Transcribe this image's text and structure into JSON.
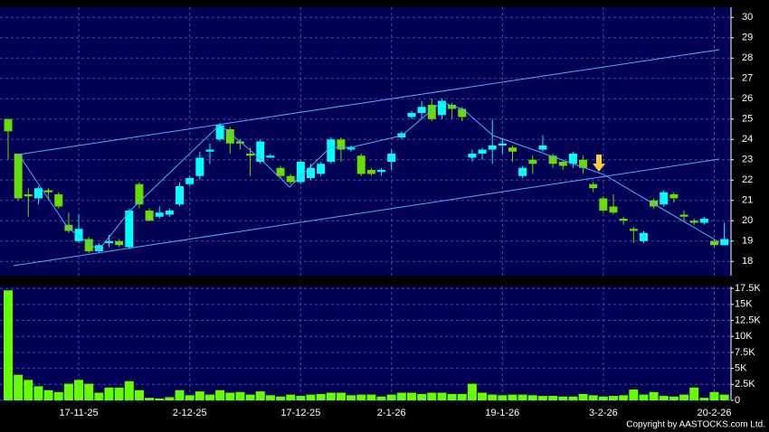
{
  "chart_data": [
    {
      "type": "candlestick",
      "open": [
        25,
        23.3,
        21.3,
        21.1,
        21.5,
        21.3,
        19.8,
        19.0,
        19.1,
        18.5,
        18.9,
        19.0,
        18.7,
        21.8,
        20.5,
        20.2,
        20.3,
        20.8,
        21.8,
        22.2,
        23.4,
        24.0,
        24.5,
        23.9,
        23.3,
        22.9,
        23.1,
        22.6,
        22.2,
        21.9,
        22.1,
        22.3,
        22.9,
        24.0,
        23.5,
        23.2,
        22.5,
        22.4,
        22.9,
        24.1,
        25.1,
        25.3,
        25.7,
        25.2,
        25.7,
        25.5,
        23.1,
        23.3,
        23.5,
        23.7,
        23.6,
        22.2,
        23.0,
        23.5,
        23.2,
        22.9,
        22.8,
        23.0,
        21.8,
        21.1,
        20.7,
        20.1,
        19.6,
        19.0,
        21.0,
        20.8,
        21.3,
        20.3,
        20.0,
        19.9,
        19.0,
        18.8
      ],
      "high": [
        25,
        23.3,
        21.6,
        21.7,
        21.6,
        21.4,
        20.4,
        20.3,
        19.2,
        18.9,
        19.3,
        19.1,
        20.6,
        21.9,
        20.6,
        20.7,
        20.6,
        21.9,
        22.2,
        23.4,
        23.8,
        24.8,
        24.6,
        24.0,
        23.6,
        24.0,
        23.3,
        22.7,
        22.3,
        23.0,
        22.8,
        22.9,
        24.1,
        24.1,
        23.7,
        23.3,
        22.6,
        22.6,
        23.5,
        24.4,
        25.4,
        25.9,
        26.0,
        26.0,
        25.8,
        25.6,
        23.5,
        23.6,
        25.0,
        24.0,
        23.7,
        22.7,
        23.2,
        24.2,
        23.3,
        23.0,
        23.4,
        23.2,
        21.9,
        21.2,
        21.3,
        20.2,
        19.7,
        19.5,
        21.1,
        21.5,
        21.4,
        20.5,
        20.1,
        20.2,
        19.1,
        19.9
      ],
      "low": [
        23,
        21.0,
        20.2,
        20.8,
        21.0,
        20.6,
        19.4,
        18.9,
        18.4,
        18.4,
        18.7,
        18.7,
        18.6,
        20.6,
        20.0,
        20.1,
        20.2,
        20.7,
        21.7,
        22.0,
        22.8,
        23.9,
        23.3,
        23.5,
        22.2,
        22.8,
        23.1,
        22.1,
        21.8,
        21.8,
        22.0,
        22.2,
        22.8,
        22.9,
        23.4,
        22.2,
        22.2,
        22.2,
        22.5,
        24.0,
        25.0,
        25.0,
        24.9,
        25.0,
        25.0,
        24.9,
        22.9,
        23.0,
        22.8,
        23.3,
        22.9,
        22.1,
        22.3,
        23.4,
        22.6,
        22.5,
        22.6,
        22.3,
        21.4,
        20.4,
        20.3,
        19.8,
        18.9,
        18.9,
        20.6,
        20.7,
        20.9,
        20.0,
        19.8,
        19.8,
        18.7,
        18.8
      ],
      "close": [
        24.4,
        21.1,
        21.2,
        21.6,
        21.4,
        20.7,
        19.5,
        19.6,
        18.5,
        18.8,
        19.0,
        18.8,
        20.5,
        20.8,
        20.0,
        20.4,
        20.5,
        21.7,
        22.1,
        23.1,
        23.5,
        24.7,
        23.8,
        23.8,
        23.2,
        23.9,
        23.2,
        22.2,
        21.9,
        22.9,
        22.6,
        22.8,
        24.0,
        23.5,
        23.6,
        22.3,
        22.3,
        22.5,
        23.3,
        24.3,
        25.3,
        25.6,
        25.0,
        25.9,
        25.5,
        25.1,
        23.3,
        23.5,
        23.7,
        23.8,
        23.4,
        22.6,
        22.8,
        23.7,
        22.8,
        22.7,
        23.3,
        22.6,
        21.6,
        20.5,
        20.4,
        20.0,
        19.5,
        19.4,
        20.7,
        21.4,
        21.1,
        20.2,
        19.9,
        20.1,
        18.8,
        19.1
      ],
      "up_color": "#00ffff",
      "down_color": "#66dd00",
      "ylim": [
        17.3,
        30.5
      ],
      "yticks": [
        18,
        19,
        20,
        21,
        22,
        23,
        24,
        25,
        26,
        27,
        28,
        29,
        30
      ],
      "grid": true
    },
    {
      "type": "bar",
      "categories": [
        null,
        null,
        null,
        null,
        null,
        null,
        null,
        "17-11-25",
        null,
        null,
        null,
        null,
        null,
        null,
        null,
        null,
        null,
        null,
        "2-12-25",
        null,
        null,
        null,
        null,
        null,
        null,
        null,
        null,
        null,
        null,
        "17-12-25",
        null,
        null,
        null,
        null,
        null,
        null,
        null,
        null,
        "2-1-26",
        null,
        null,
        null,
        null,
        null,
        null,
        null,
        null,
        null,
        null,
        "19-1-26",
        null,
        null,
        null,
        null,
        null,
        null,
        null,
        null,
        null,
        "3-2-26",
        null,
        null,
        null,
        null,
        null,
        null,
        null,
        null,
        null,
        null,
        "20-2-26",
        null
      ],
      "values": [
        17200,
        4000,
        3200,
        2200,
        1600,
        1300,
        2600,
        3200,
        2600,
        1200,
        2000,
        2000,
        3000,
        1600,
        400,
        300,
        500,
        1600,
        800,
        1400,
        900,
        1600,
        1200,
        1300,
        900,
        1400,
        800,
        600,
        900,
        700,
        900,
        1000,
        1200,
        1200,
        800,
        900,
        900,
        600,
        900,
        1200,
        1200,
        1000,
        1200,
        1200,
        1000,
        1000,
        2600,
        1200,
        900,
        800,
        900,
        900,
        800,
        700,
        700,
        600,
        600,
        1000,
        800,
        600,
        700,
        800,
        1700,
        900,
        1300,
        700,
        600,
        900,
        2000,
        400,
        1300,
        900
      ],
      "color": "#66ff00",
      "ylim": [
        0,
        17800
      ],
      "yticks": [
        0,
        {
          "value": 2500,
          "label": "2.5K"
        },
        {
          "value": 5000,
          "label": "5K"
        },
        {
          "value": 7500,
          "label": "7.5K"
        },
        {
          "value": 10000,
          "label": "10K"
        },
        {
          "value": 12500,
          "label": "12.5K"
        },
        {
          "value": 15000,
          "label": "15K"
        },
        {
          "value": 17500,
          "label": "17.5K"
        }
      ],
      "grid": true
    }
  ],
  "copyright": "Copyright by AASTOCKS.com Ltd."
}
